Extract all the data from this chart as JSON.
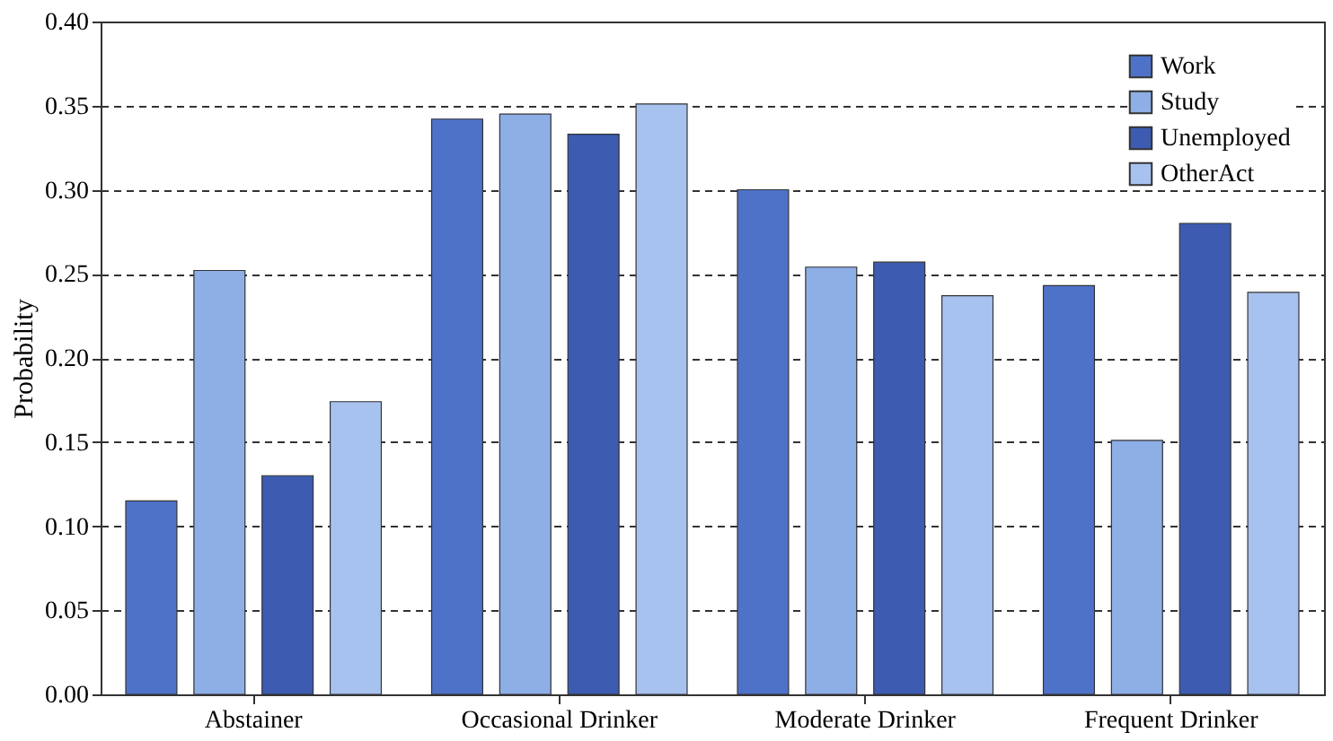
{
  "chart_data": {
    "type": "bar",
    "ylabel": "Probability",
    "categories": [
      "Abstainer",
      "Occasional Drinker",
      "Moderate Drinker",
      "Frequent Drinker"
    ],
    "series": [
      {
        "name": "Work",
        "color": "#4f72c9",
        "values": [
          0.115,
          0.342,
          0.3,
          0.243
        ]
      },
      {
        "name": "Study",
        "color": "#8eaee6",
        "values": [
          0.252,
          0.345,
          0.254,
          0.151
        ]
      },
      {
        "name": "Unemployed",
        "color": "#3d5bb0",
        "values": [
          0.13,
          0.333,
          0.257,
          0.28
        ]
      },
      {
        "name": "OtherAct",
        "color": "#a8c2ef",
        "values": [
          0.174,
          0.351,
          0.237,
          0.239
        ]
      }
    ],
    "ylim": [
      0,
      0.4
    ],
    "yticks": [
      {
        "value": 0,
        "label": "0.00"
      },
      {
        "value": 0.05,
        "label": "0.05"
      },
      {
        "value": 0.1,
        "label": "0.10"
      },
      {
        "value": 0.15,
        "label": "0.15"
      },
      {
        "value": 0.2,
        "label": "0.20"
      },
      {
        "value": 0.25,
        "label": "0.25"
      },
      {
        "value": 0.3,
        "label": "0.30"
      },
      {
        "value": 0.35,
        "label": "0.35"
      },
      {
        "value": 0.4,
        "label": "0.40"
      }
    ],
    "grid": "y",
    "legend": "top right"
  }
}
